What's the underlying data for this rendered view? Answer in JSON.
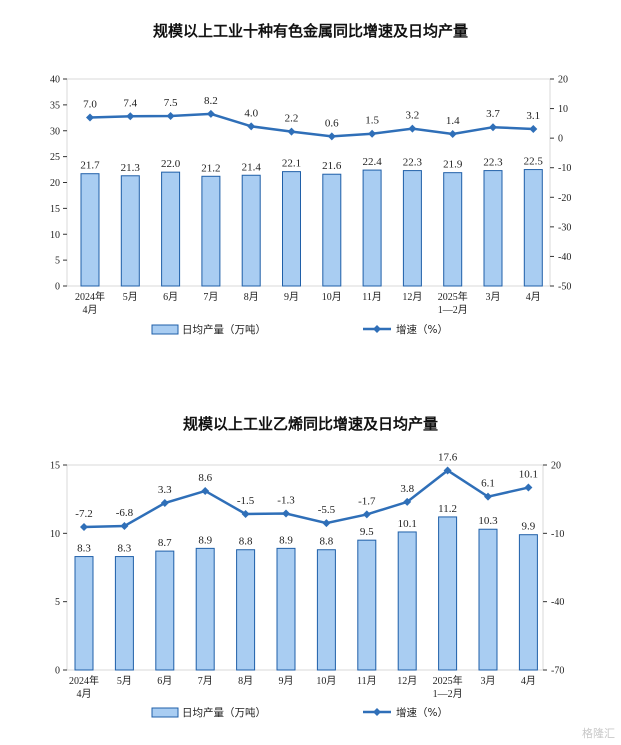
{
  "watermark": "格隆汇",
  "colors": {
    "bar_fill": "#a9cdf2",
    "bar_stroke": "#1f5fa8",
    "line": "#2f6fb8",
    "grid": "#d9d9d9",
    "axis": "#333333"
  },
  "chart_data": [
    {
      "type": "bar+line",
      "title": "规模以上工业十种有色金属同比增速及日均产量",
      "categories": [
        [
          "2024年",
          "4月"
        ],
        [
          "5月"
        ],
        [
          "6月"
        ],
        [
          "7月"
        ],
        [
          "8月"
        ],
        [
          "9月"
        ],
        [
          "10月"
        ],
        [
          "11月"
        ],
        [
          "12月"
        ],
        [
          "2025年",
          "1—2月"
        ],
        [
          "3月"
        ],
        [
          "4月"
        ]
      ],
      "series": [
        {
          "name": "日均产量（万吨）",
          "type": "bar",
          "axis": "left",
          "values": [
            21.7,
            21.3,
            22.0,
            21.2,
            21.4,
            22.1,
            21.6,
            22.4,
            22.3,
            21.9,
            22.3,
            22.5
          ]
        },
        {
          "name": "增速（%）",
          "type": "line",
          "axis": "right",
          "values": [
            7.0,
            7.4,
            7.5,
            8.2,
            4.0,
            2.2,
            0.6,
            1.5,
            3.2,
            1.4,
            3.7,
            3.1
          ]
        }
      ],
      "left_axis": {
        "min": 0,
        "max": 40,
        "ticks": [
          0,
          5,
          10,
          15,
          20,
          25,
          30,
          35,
          40
        ]
      },
      "right_axis": {
        "min": -50,
        "max": 20,
        "ticks": [
          -50,
          -40,
          -30,
          -20,
          -10,
          0,
          10,
          20
        ]
      },
      "legend_position": "bottom"
    },
    {
      "type": "bar+line",
      "title": "规模以上工业乙烯同比增速及日均产量",
      "categories": [
        [
          "2024年",
          "4月"
        ],
        [
          "5月"
        ],
        [
          "6月"
        ],
        [
          "7月"
        ],
        [
          "8月"
        ],
        [
          "9月"
        ],
        [
          "10月"
        ],
        [
          "11月"
        ],
        [
          "12月"
        ],
        [
          "2025年",
          "1—2月"
        ],
        [
          "3月"
        ],
        [
          "4月"
        ]
      ],
      "series": [
        {
          "name": "日均产量（万吨）",
          "type": "bar",
          "axis": "left",
          "values": [
            8.3,
            8.3,
            8.7,
            8.9,
            8.8,
            8.9,
            8.8,
            9.5,
            10.1,
            11.2,
            10.3,
            9.9
          ]
        },
        {
          "name": "增速（%）",
          "type": "line",
          "axis": "right",
          "values": [
            -7.2,
            -6.8,
            3.3,
            8.6,
            -1.5,
            -1.3,
            -5.5,
            -1.7,
            3.8,
            17.6,
            6.1,
            10.1
          ]
        }
      ],
      "left_axis": {
        "min": 0,
        "max": 15,
        "ticks": [
          0,
          5,
          10,
          15
        ]
      },
      "right_axis": {
        "min": -70,
        "max": 20,
        "ticks": [
          -70,
          -40,
          -10,
          20
        ]
      },
      "legend_position": "bottom"
    }
  ]
}
